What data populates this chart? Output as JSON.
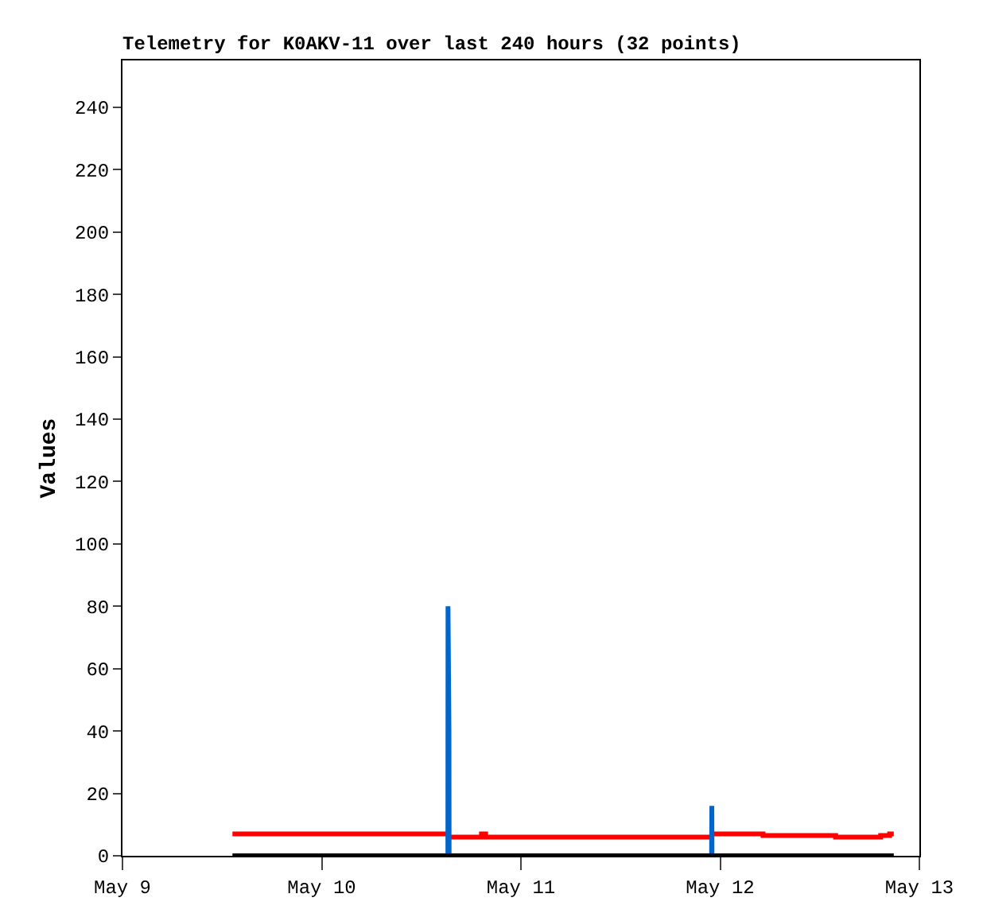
{
  "chart_data": {
    "type": "line",
    "title": "Telemetry for K0AKV-11 over last 240 hours (32 points)",
    "ylabel": "Values",
    "xlim": [
      "--05-09",
      "--05-13"
    ],
    "xticks": [
      {
        "value": "--05-09",
        "label": "May 9"
      },
      {
        "value": "--05-10",
        "label": "May 10"
      },
      {
        "value": "--05-11",
        "label": "May 11"
      },
      {
        "value": "--05-12",
        "label": "May 12"
      },
      {
        "value": "--05-13",
        "label": "May 13"
      }
    ],
    "ylim": [
      0,
      255
    ],
    "yticks": [
      0,
      20,
      40,
      60,
      80,
      100,
      120,
      140,
      160,
      180,
      200,
      220,
      240
    ],
    "marker": "none",
    "line_style": "solid",
    "series": [
      {
        "type": "step",
        "color": "#ff0000",
        "x": [
          "--05-09T13:15",
          "--05-10T15:15",
          "--05-10T19:15",
          "--05-10T19:45",
          "--05-11T23:00",
          "--05-12T05:10",
          "--05-12T13:55",
          "--05-12T19:20",
          "--05-12T20:25",
          "--05-12T20:55"
        ],
        "values": [
          7,
          6,
          7,
          6,
          7,
          6.5,
          6,
          6.5,
          7,
          7
        ]
      },
      {
        "color": "#0066cc",
        "x": [
          "--05-10T15:12",
          "--05-10T15:13",
          "--05-10T15:20",
          "--05-10T15:21",
          "--05-11T12:00",
          "--05-11T22:58",
          "--05-11T22:59",
          "--05-11T23:00",
          "--05-11T23:01"
        ],
        "values": [
          0,
          80,
          40,
          0,
          null,
          0,
          8,
          16,
          0
        ]
      },
      {
        "color": "#000000",
        "x": [
          "--05-09T13:15",
          "--05-12T20:55"
        ],
        "values": [
          0,
          0
        ]
      }
    ]
  }
}
